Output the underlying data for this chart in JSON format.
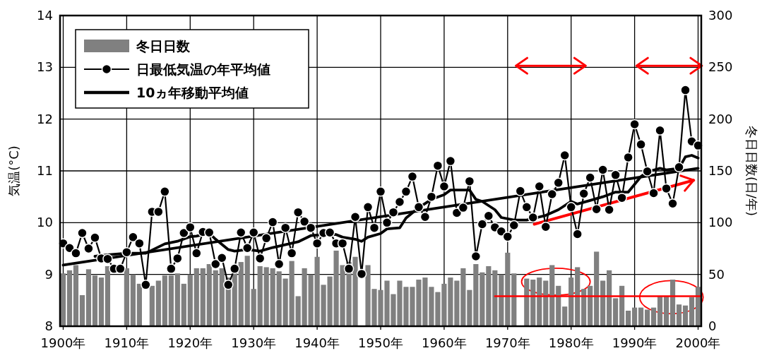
{
  "chart_data": {
    "type": "line",
    "ylabel": "気温(°C)",
    "y2label": "冬日日数(日/年)",
    "grid": true,
    "legend": "top left",
    "x": [
      1900,
      1901,
      1902,
      1903,
      1904,
      1905,
      1906,
      1907,
      1908,
      1909,
      1910,
      1911,
      1912,
      1913,
      1914,
      1915,
      1916,
      1917,
      1918,
      1919,
      1920,
      1921,
      1922,
      1923,
      1924,
      1925,
      1926,
      1927,
      1928,
      1929,
      1930,
      1931,
      1932,
      1933,
      1934,
      1935,
      1936,
      1937,
      1938,
      1939,
      1940,
      1941,
      1942,
      1943,
      1944,
      1945,
      1946,
      1947,
      1948,
      1949,
      1950,
      1951,
      1952,
      1953,
      1954,
      1955,
      1956,
      1957,
      1958,
      1959,
      1960,
      1961,
      1962,
      1963,
      1964,
      1965,
      1966,
      1967,
      1968,
      1969,
      1970,
      1971,
      1972,
      1973,
      1974,
      1975,
      1976,
      1977,
      1978,
      1979,
      1980,
      1981,
      1982,
      1983,
      1984,
      1985,
      1986,
      1987,
      1988,
      1989,
      1990,
      1991,
      1992,
      1993,
      1994,
      1995,
      1996,
      1997,
      1998,
      1999,
      2000
    ],
    "xlim": [
      1899.5,
      2000.5
    ],
    "xticks": [
      {
        "value": 1900,
        "label": "1900年"
      },
      {
        "value": 1910,
        "label": "1910年"
      },
      {
        "value": 1920,
        "label": "1920年"
      },
      {
        "value": 1930,
        "label": "1930年"
      },
      {
        "value": 1940,
        "label": "1940年"
      },
      {
        "value": 1950,
        "label": "1950年"
      },
      {
        "value": 1960,
        "label": "1960年"
      },
      {
        "value": 1970,
        "label": "1970年"
      },
      {
        "value": 1980,
        "label": "1980年"
      },
      {
        "value": 1990,
        "label": "1990年"
      },
      {
        "value": 2000,
        "label": "2000年"
      }
    ],
    "ylim": [
      8,
      14
    ],
    "yticks": [
      8,
      9,
      10,
      11,
      12,
      13,
      14
    ],
    "y2lim": [
      0,
      300
    ],
    "y2ticks": [
      0,
      50,
      100,
      150,
      200,
      250,
      300
    ],
    "series": [
      {
        "name": "冬日日数",
        "type": "bar",
        "axis": "y2",
        "color": "#808080",
        "values": [
          51,
          54,
          59,
          30,
          55,
          49,
          47,
          58,
          null,
          null,
          56,
          50,
          41,
          null,
          39,
          44,
          49,
          49,
          51,
          41,
          50,
          56,
          56,
          60,
          54,
          56,
          47,
          60,
          62,
          68,
          36,
          58,
          57,
          56,
          53,
          46,
          63,
          29,
          56,
          50,
          67,
          40,
          48,
          73,
          59,
          62,
          67,
          null,
          59,
          36,
          35,
          44,
          31,
          44,
          38,
          38,
          45,
          47,
          38,
          33,
          41,
          47,
          44,
          56,
          35,
          60,
          52,
          58,
          54,
          50,
          71,
          51,
          null,
          46,
          45,
          47,
          44,
          59,
          39,
          19,
          47,
          57,
          36,
          39,
          72,
          44,
          54,
          27,
          39,
          15,
          18,
          18,
          16,
          18,
          29,
          29,
          45,
          21,
          20,
          28,
          38
        ]
      },
      {
        "name": "日最低気温の年平均値",
        "color": "#000000",
        "marker": "circle",
        "values": [
          9.6,
          9.51,
          9.41,
          9.8,
          9.5,
          9.71,
          9.31,
          9.3,
          9.11,
          9.11,
          9.43,
          9.72,
          9.6,
          8.8,
          10.21,
          10.21,
          10.6,
          9.11,
          9.31,
          9.8,
          9.91,
          9.41,
          9.82,
          9.81,
          9.2,
          9.32,
          8.8,
          9.11,
          9.81,
          9.51,
          9.81,
          9.31,
          9.7,
          10.01,
          9.2,
          9.9,
          9.41,
          10.2,
          10.02,
          9.9,
          9.6,
          9.8,
          9.81,
          9.6,
          9.6,
          9.11,
          10.11,
          9.01,
          10.3,
          9.9,
          10.6,
          10.0,
          10.2,
          10.4,
          10.6,
          10.89,
          10.3,
          10.11,
          10.5,
          11.1,
          10.7,
          11.19,
          10.19,
          10.29,
          10.8,
          9.35,
          9.97,
          10.13,
          9.91,
          9.83,
          9.73,
          9.95,
          10.61,
          10.3,
          10.1,
          10.7,
          9.92,
          10.55,
          10.77,
          11.3,
          10.3,
          9.78,
          10.56,
          10.87,
          10.26,
          11.02,
          10.25,
          10.92,
          10.48,
          11.26,
          11.9,
          11.51,
          10.99,
          10.57,
          11.78,
          10.66,
          10.37,
          11.07,
          12.56,
          11.57,
          11.49
        ]
      },
      {
        "name": "10ヵ年移動平均値",
        "color": "#000000",
        "x": [
          1905,
          1907,
          1910,
          1913,
          1916,
          1918,
          1920,
          1921,
          1923,
          1924,
          1926,
          1927,
          1929,
          1931,
          1933,
          1937,
          1939,
          1941,
          1943,
          1944,
          1946,
          1947,
          1948,
          1950,
          1951,
          1953,
          1954,
          1956,
          1958,
          1960,
          1961,
          1964,
          1965,
          1966,
          1968,
          1969,
          1971,
          1973,
          1975,
          1976,
          1978,
          1980,
          1981,
          1983,
          1985,
          1987,
          1989,
          1991,
          1992,
          1994,
          1995,
          1997,
          1998,
          1999,
          2000
        ],
        "values": [
          9.35,
          9.38,
          9.41,
          9.41,
          9.59,
          9.64,
          9.73,
          9.74,
          9.8,
          9.68,
          9.48,
          9.45,
          9.48,
          9.45,
          9.52,
          9.63,
          9.75,
          9.77,
          9.77,
          9.72,
          9.68,
          9.64,
          9.72,
          9.79,
          9.88,
          9.9,
          10.09,
          10.29,
          10.45,
          10.54,
          10.63,
          10.63,
          10.45,
          10.41,
          10.25,
          10.1,
          10.05,
          10.05,
          10.11,
          10.14,
          10.25,
          10.41,
          10.36,
          10.43,
          10.5,
          10.59,
          10.59,
          10.89,
          10.98,
          11.05,
          11.02,
          11.05,
          11.27,
          11.3,
          11.25
        ]
      },
      {
        "color": "#000000",
        "x": [
          1900,
          2000
        ],
        "values": [
          9.18,
          11.05
        ]
      },
      {
        "axis": "y2",
        "color": "#ff0000",
        "x": [
          1968,
          2000.5
        ],
        "values": [
          29,
          29
        ]
      }
    ]
  }
}
